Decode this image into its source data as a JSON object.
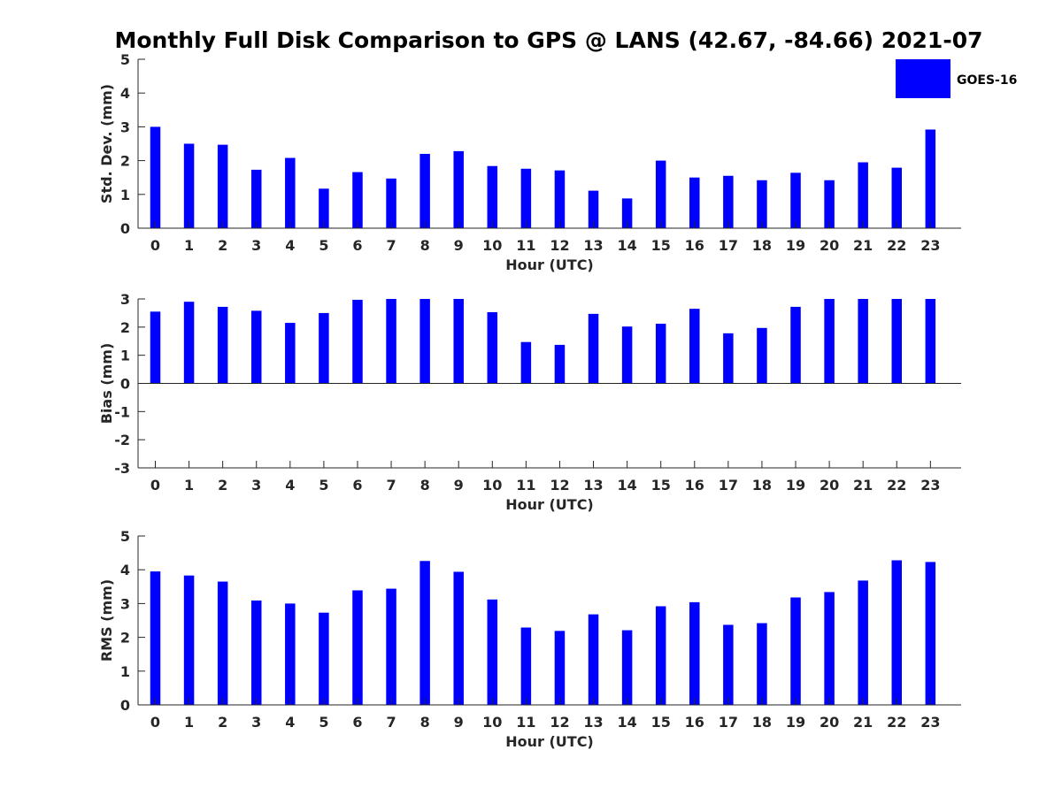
{
  "title": "Monthly Full Disk Comparison to GPS @ LANS (42.67, -84.66) 2021-07",
  "legend": {
    "label": "GOES-16",
    "color": "#0000ff"
  },
  "chart_data": [
    {
      "type": "bar",
      "xlabel": "Hour (UTC)",
      "ylabel": "Std. Dev. (mm)",
      "ylim": [
        0,
        5
      ],
      "yticks": [
        0,
        1,
        2,
        3,
        4,
        5
      ],
      "categories": [
        "0",
        "1",
        "2",
        "3",
        "4",
        "5",
        "6",
        "7",
        "8",
        "9",
        "10",
        "11",
        "12",
        "13",
        "14",
        "15",
        "16",
        "17",
        "18",
        "19",
        "20",
        "21",
        "22",
        "23"
      ],
      "series": [
        {
          "name": "GOES-16",
          "color": "#0000ff",
          "values": [
            3.0,
            2.5,
            2.47,
            1.73,
            2.08,
            1.17,
            1.66,
            1.47,
            2.2,
            2.28,
            1.84,
            1.76,
            1.71,
            1.11,
            0.88,
            2.0,
            1.5,
            1.55,
            1.42,
            1.64,
            1.42,
            1.95,
            1.79,
            2.92
          ]
        }
      ]
    },
    {
      "type": "bar",
      "xlabel": "Hour (UTC)",
      "ylabel": "Bias (mm)",
      "ylim": [
        -3,
        3
      ],
      "yticks": [
        -3,
        -2,
        -1,
        0,
        1,
        2,
        3
      ],
      "categories": [
        "0",
        "1",
        "2",
        "3",
        "4",
        "5",
        "6",
        "7",
        "8",
        "9",
        "10",
        "11",
        "12",
        "13",
        "14",
        "15",
        "16",
        "17",
        "18",
        "19",
        "20",
        "21",
        "22",
        "23"
      ],
      "series": [
        {
          "name": "GOES-16",
          "color": "#0000ff",
          "values": [
            2.55,
            2.9,
            2.72,
            2.58,
            2.15,
            2.5,
            2.97,
            3.0,
            3.0,
            3.0,
            2.53,
            1.47,
            1.37,
            2.47,
            2.02,
            2.12,
            2.65,
            1.78,
            1.97,
            2.72,
            3.0,
            3.0,
            3.0,
            3.0
          ]
        }
      ]
    },
    {
      "type": "bar",
      "xlabel": "Hour (UTC)",
      "ylabel": "RMS (mm)",
      "ylim": [
        0,
        5
      ],
      "yticks": [
        0,
        1,
        2,
        3,
        4,
        5
      ],
      "categories": [
        "0",
        "1",
        "2",
        "3",
        "4",
        "5",
        "6",
        "7",
        "8",
        "9",
        "10",
        "11",
        "12",
        "13",
        "14",
        "15",
        "16",
        "17",
        "18",
        "19",
        "20",
        "21",
        "22",
        "23"
      ],
      "series": [
        {
          "name": "GOES-16",
          "color": "#0000ff",
          "values": [
            3.95,
            3.83,
            3.65,
            3.09,
            3.0,
            2.73,
            3.39,
            3.44,
            4.26,
            3.94,
            3.12,
            2.29,
            2.19,
            2.68,
            2.21,
            2.92,
            3.04,
            2.37,
            2.42,
            3.18,
            3.34,
            3.68,
            4.28,
            4.23
          ]
        }
      ]
    }
  ]
}
